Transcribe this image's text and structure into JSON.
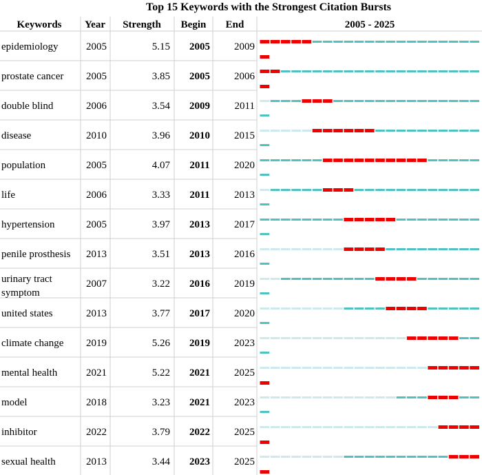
{
  "chart_data": {
    "type": "table",
    "title": "Top 15 Keywords with the Strongest Citation Bursts",
    "columns": [
      "Keywords",
      "Year",
      "Strength",
      "Begin",
      "End",
      "2005 - 2025"
    ],
    "range": [
      2005,
      2025
    ],
    "rows": [
      {
        "keyword": "epidemiology",
        "year": 2005,
        "strength": "5.15",
        "begin": 2005,
        "end": 2009
      },
      {
        "keyword": "prostate cancer",
        "year": 2005,
        "strength": "3.85",
        "begin": 2005,
        "end": 2006
      },
      {
        "keyword": "double blind",
        "year": 2006,
        "strength": "3.54",
        "begin": 2009,
        "end": 2011
      },
      {
        "keyword": "disease",
        "year": 2010,
        "strength": "3.96",
        "begin": 2010,
        "end": 2015
      },
      {
        "keyword": "population",
        "year": 2005,
        "strength": "4.07",
        "begin": 2011,
        "end": 2020
      },
      {
        "keyword": "life",
        "year": 2006,
        "strength": "3.33",
        "begin": 2011,
        "end": 2013
      },
      {
        "keyword": "hypertension",
        "year": 2005,
        "strength": "3.97",
        "begin": 2013,
        "end": 2017
      },
      {
        "keyword": "penile prosthesis",
        "year": 2013,
        "strength": "3.51",
        "begin": 2013,
        "end": 2016
      },
      {
        "keyword": "urinary tract symptom",
        "year": 2007,
        "strength": "3.22",
        "begin": 2016,
        "end": 2019
      },
      {
        "keyword": "united states",
        "year": 2013,
        "strength": "3.77",
        "begin": 2017,
        "end": 2020
      },
      {
        "keyword": "climate change",
        "year": 2019,
        "strength": "5.26",
        "begin": 2019,
        "end": 2023
      },
      {
        "keyword": "mental health",
        "year": 2021,
        "strength": "5.22",
        "begin": 2021,
        "end": 2025
      },
      {
        "keyword": "model",
        "year": 2018,
        "strength": "3.23",
        "begin": 2021,
        "end": 2023
      },
      {
        "keyword": "inhibitor",
        "year": 2022,
        "strength": "3.79",
        "begin": 2022,
        "end": 2025
      },
      {
        "keyword": "sexual health",
        "year": 2013,
        "strength": "3.44",
        "begin": 2023,
        "end": 2025
      }
    ]
  },
  "colors": {
    "burst": "#ee0000",
    "active": "#4fc1c1",
    "inactive": "#cde9ec",
    "grid": "#cfcfcf"
  }
}
